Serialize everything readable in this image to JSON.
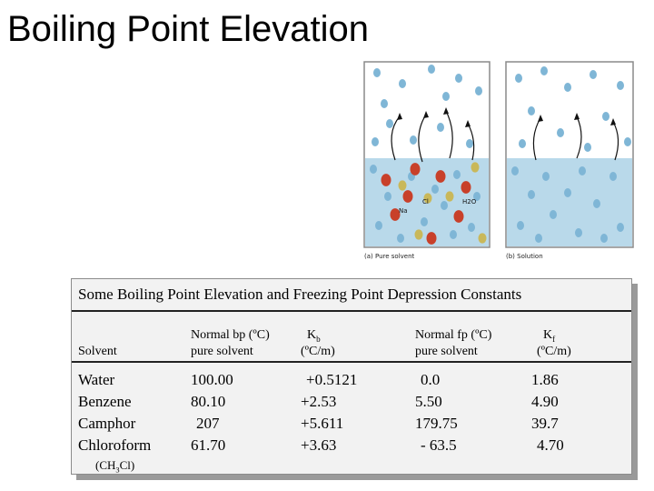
{
  "slide": {
    "title": "Boiling Point Elevation"
  },
  "illustration": {
    "left_caption": "(a) Pure solvent",
    "right_caption": "(b) Solution",
    "labels": [
      "Cl",
      "H2O",
      "Na"
    ],
    "colors": {
      "water_tint": "#b9d9ea",
      "solvent_molecule": "#7fb6d6",
      "solute_red": "#c8402a",
      "solute_yellow": "#c9b85a"
    }
  },
  "table": {
    "title": "Some Boiling Point Elevation and Freezing Point Depression Constants",
    "headers": {
      "solvent": "Solvent",
      "bp_line1": "Normal bp (ºC)",
      "bp_line2": "pure solvent",
      "kb_symbol": "K",
      "kb_sub": "b",
      "kb_units": "(ºC/m)",
      "fp_line1": "Normal fp (ºC)",
      "fp_line2": "pure solvent",
      "kf_symbol": "K",
      "kf_sub": "f",
      "kf_units": "(ºC/m)"
    },
    "rows": [
      {
        "solvent": "Water",
        "bp": "100.00",
        "kb": "+0.5121",
        "fp": "0.0",
        "kf": "1.86"
      },
      {
        "solvent": "Benzene",
        "bp": "80.10",
        "kb": "+2.53",
        "fp": "5.50",
        "kf": "4.90"
      },
      {
        "solvent": "Camphor",
        "bp": "207",
        "kb": "+5.611",
        "fp": "179.75",
        "kf": "39.7"
      },
      {
        "solvent": "Chloroform",
        "bp": "61.70",
        "kb": "+3.63",
        "fp": "- 63.5",
        "kf": "4.70"
      }
    ],
    "chloroform_formula": {
      "prefix": "(CH",
      "sub": "3",
      "suffix": "Cl)"
    }
  }
}
